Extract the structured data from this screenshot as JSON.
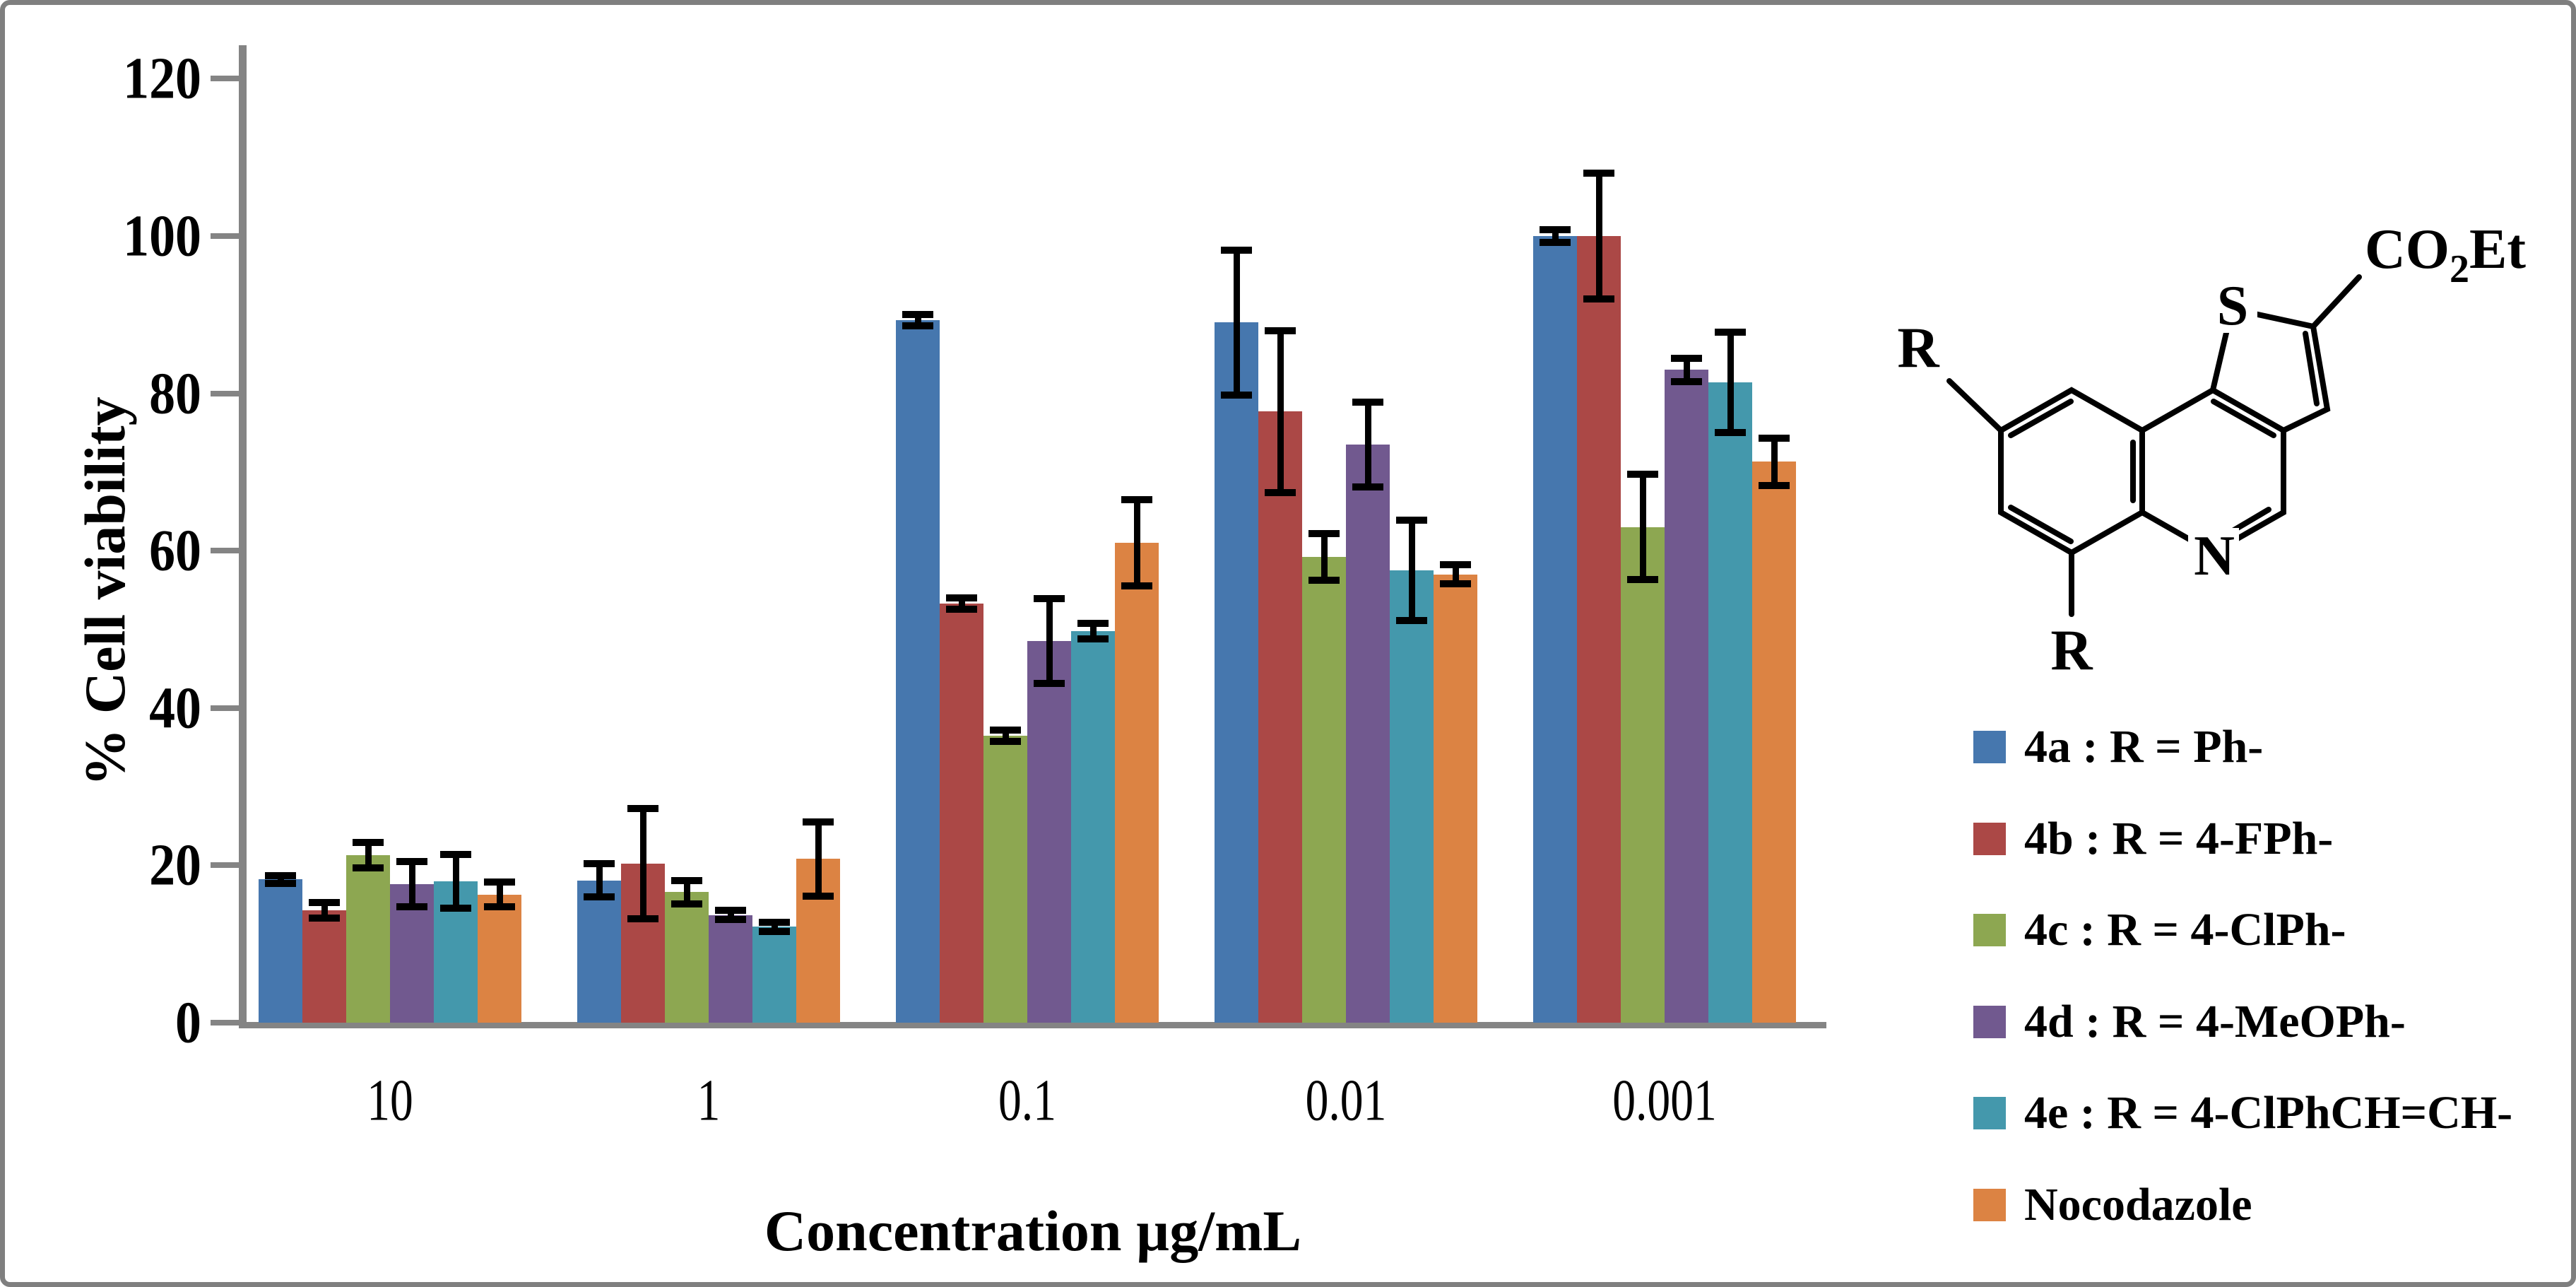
{
  "chart_data": {
    "type": "bar",
    "title": "",
    "xlabel": "Concentration µg/mL",
    "ylabel": "% Cell viability",
    "ylim": [
      0,
      120
    ],
    "yticks": [
      0,
      20,
      40,
      60,
      80,
      100,
      120
    ],
    "grid": false,
    "legend_position": "right",
    "categories": [
      "10",
      "1",
      "0.1",
      "0.01",
      "0.001"
    ],
    "series": [
      {
        "name": "4a : R = Ph-",
        "color": "#4677AE",
        "values": [
          18.2,
          18.1,
          89.3,
          89.0,
          100.0
        ],
        "errors": [
          0.5,
          2.1,
          0.7,
          9.2,
          0.8
        ]
      },
      {
        "name": "4b : R = 4-FPh-",
        "color": "#AB4846",
        "values": [
          14.3,
          20.2,
          53.3,
          77.7,
          100.0
        ],
        "errors": [
          1.0,
          7.0,
          0.7,
          10.3,
          8.0
        ]
      },
      {
        "name": "4c : R = 4-ClPh-",
        "color": "#8DA751",
        "values": [
          21.3,
          16.6,
          36.5,
          59.2,
          63.0
        ],
        "errors": [
          1.6,
          1.5,
          0.7,
          3.0,
          6.7
        ]
      },
      {
        "name": "4d : R = 4-MeOPh-",
        "color": "#71598F",
        "values": [
          17.6,
          13.7,
          48.5,
          73.5,
          83.0
        ],
        "errors": [
          2.9,
          0.6,
          5.4,
          5.4,
          1.5
        ]
      },
      {
        "name": "4e : R = 4-ClPhCH=CH-",
        "color": "#4498AC",
        "values": [
          18.0,
          12.2,
          49.8,
          57.5,
          81.4
        ],
        "errors": [
          3.4,
          0.6,
          1.0,
          6.4,
          6.4
        ]
      },
      {
        "name": "Nocodazole",
        "color": "#DC8343",
        "values": [
          16.3,
          20.8,
          61.0,
          57.0,
          71.3
        ],
        "errors": [
          1.6,
          4.7,
          5.5,
          1.2,
          3.0
        ]
      }
    ]
  },
  "structure": {
    "sulfur": "S",
    "nitrogen": "N",
    "r_left": "R",
    "r_bottom": "R",
    "ester_prefix": "CO",
    "ester_sub": "2",
    "ester_suffix": "Et"
  }
}
